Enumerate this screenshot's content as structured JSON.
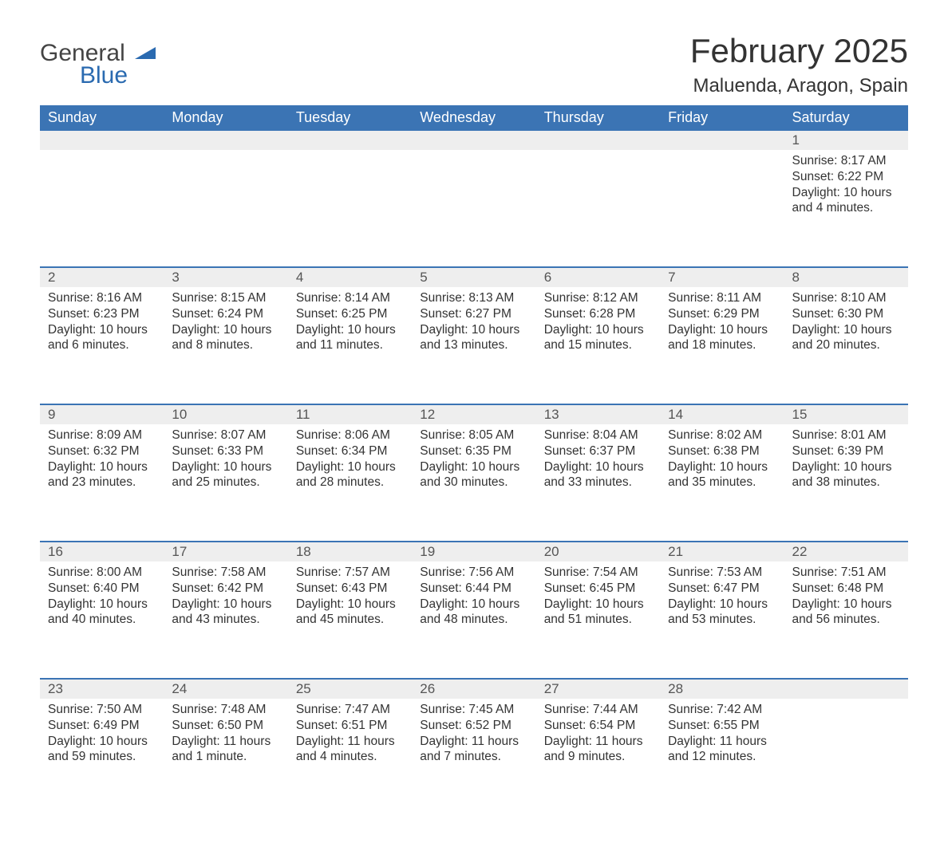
{
  "logo": {
    "word1": "General",
    "word2": "Blue"
  },
  "title": "February 2025",
  "location": "Maluenda, Aragon, Spain",
  "colors": {
    "header_bg": "#3b74b4",
    "header_text": "#ffffff",
    "daynum_bg": "#eeeeee",
    "rule": "#3b74b4",
    "text": "#333333",
    "logo_blue": "#2a6ab0",
    "logo_gray": "#444444",
    "page_bg": "#ffffff"
  },
  "week_headers": [
    "Sunday",
    "Monday",
    "Tuesday",
    "Wednesday",
    "Thursday",
    "Friday",
    "Saturday"
  ],
  "weeks": [
    [
      null,
      null,
      null,
      null,
      null,
      null,
      {
        "n": "1",
        "sunrise": "Sunrise: 8:17 AM",
        "sunset": "Sunset: 6:22 PM",
        "daylight": "Daylight: 10 hours and 4 minutes."
      }
    ],
    [
      {
        "n": "2",
        "sunrise": "Sunrise: 8:16 AM",
        "sunset": "Sunset: 6:23 PM",
        "daylight": "Daylight: 10 hours and 6 minutes."
      },
      {
        "n": "3",
        "sunrise": "Sunrise: 8:15 AM",
        "sunset": "Sunset: 6:24 PM",
        "daylight": "Daylight: 10 hours and 8 minutes."
      },
      {
        "n": "4",
        "sunrise": "Sunrise: 8:14 AM",
        "sunset": "Sunset: 6:25 PM",
        "daylight": "Daylight: 10 hours and 11 minutes."
      },
      {
        "n": "5",
        "sunrise": "Sunrise: 8:13 AM",
        "sunset": "Sunset: 6:27 PM",
        "daylight": "Daylight: 10 hours and 13 minutes."
      },
      {
        "n": "6",
        "sunrise": "Sunrise: 8:12 AM",
        "sunset": "Sunset: 6:28 PM",
        "daylight": "Daylight: 10 hours and 15 minutes."
      },
      {
        "n": "7",
        "sunrise": "Sunrise: 8:11 AM",
        "sunset": "Sunset: 6:29 PM",
        "daylight": "Daylight: 10 hours and 18 minutes."
      },
      {
        "n": "8",
        "sunrise": "Sunrise: 8:10 AM",
        "sunset": "Sunset: 6:30 PM",
        "daylight": "Daylight: 10 hours and 20 minutes."
      }
    ],
    [
      {
        "n": "9",
        "sunrise": "Sunrise: 8:09 AM",
        "sunset": "Sunset: 6:32 PM",
        "daylight": "Daylight: 10 hours and 23 minutes."
      },
      {
        "n": "10",
        "sunrise": "Sunrise: 8:07 AM",
        "sunset": "Sunset: 6:33 PM",
        "daylight": "Daylight: 10 hours and 25 minutes."
      },
      {
        "n": "11",
        "sunrise": "Sunrise: 8:06 AM",
        "sunset": "Sunset: 6:34 PM",
        "daylight": "Daylight: 10 hours and 28 minutes."
      },
      {
        "n": "12",
        "sunrise": "Sunrise: 8:05 AM",
        "sunset": "Sunset: 6:35 PM",
        "daylight": "Daylight: 10 hours and 30 minutes."
      },
      {
        "n": "13",
        "sunrise": "Sunrise: 8:04 AM",
        "sunset": "Sunset: 6:37 PM",
        "daylight": "Daylight: 10 hours and 33 minutes."
      },
      {
        "n": "14",
        "sunrise": "Sunrise: 8:02 AM",
        "sunset": "Sunset: 6:38 PM",
        "daylight": "Daylight: 10 hours and 35 minutes."
      },
      {
        "n": "15",
        "sunrise": "Sunrise: 8:01 AM",
        "sunset": "Sunset: 6:39 PM",
        "daylight": "Daylight: 10 hours and 38 minutes."
      }
    ],
    [
      {
        "n": "16",
        "sunrise": "Sunrise: 8:00 AM",
        "sunset": "Sunset: 6:40 PM",
        "daylight": "Daylight: 10 hours and 40 minutes."
      },
      {
        "n": "17",
        "sunrise": "Sunrise: 7:58 AM",
        "sunset": "Sunset: 6:42 PM",
        "daylight": "Daylight: 10 hours and 43 minutes."
      },
      {
        "n": "18",
        "sunrise": "Sunrise: 7:57 AM",
        "sunset": "Sunset: 6:43 PM",
        "daylight": "Daylight: 10 hours and 45 minutes."
      },
      {
        "n": "19",
        "sunrise": "Sunrise: 7:56 AM",
        "sunset": "Sunset: 6:44 PM",
        "daylight": "Daylight: 10 hours and 48 minutes."
      },
      {
        "n": "20",
        "sunrise": "Sunrise: 7:54 AM",
        "sunset": "Sunset: 6:45 PM",
        "daylight": "Daylight: 10 hours and 51 minutes."
      },
      {
        "n": "21",
        "sunrise": "Sunrise: 7:53 AM",
        "sunset": "Sunset: 6:47 PM",
        "daylight": "Daylight: 10 hours and 53 minutes."
      },
      {
        "n": "22",
        "sunrise": "Sunrise: 7:51 AM",
        "sunset": "Sunset: 6:48 PM",
        "daylight": "Daylight: 10 hours and 56 minutes."
      }
    ],
    [
      {
        "n": "23",
        "sunrise": "Sunrise: 7:50 AM",
        "sunset": "Sunset: 6:49 PM",
        "daylight": "Daylight: 10 hours and 59 minutes."
      },
      {
        "n": "24",
        "sunrise": "Sunrise: 7:48 AM",
        "sunset": "Sunset: 6:50 PM",
        "daylight": "Daylight: 11 hours and 1 minute."
      },
      {
        "n": "25",
        "sunrise": "Sunrise: 7:47 AM",
        "sunset": "Sunset: 6:51 PM",
        "daylight": "Daylight: 11 hours and 4 minutes."
      },
      {
        "n": "26",
        "sunrise": "Sunrise: 7:45 AM",
        "sunset": "Sunset: 6:52 PM",
        "daylight": "Daylight: 11 hours and 7 minutes."
      },
      {
        "n": "27",
        "sunrise": "Sunrise: 7:44 AM",
        "sunset": "Sunset: 6:54 PM",
        "daylight": "Daylight: 11 hours and 9 minutes."
      },
      {
        "n": "28",
        "sunrise": "Sunrise: 7:42 AM",
        "sunset": "Sunset: 6:55 PM",
        "daylight": "Daylight: 11 hours and 12 minutes."
      },
      null
    ]
  ]
}
